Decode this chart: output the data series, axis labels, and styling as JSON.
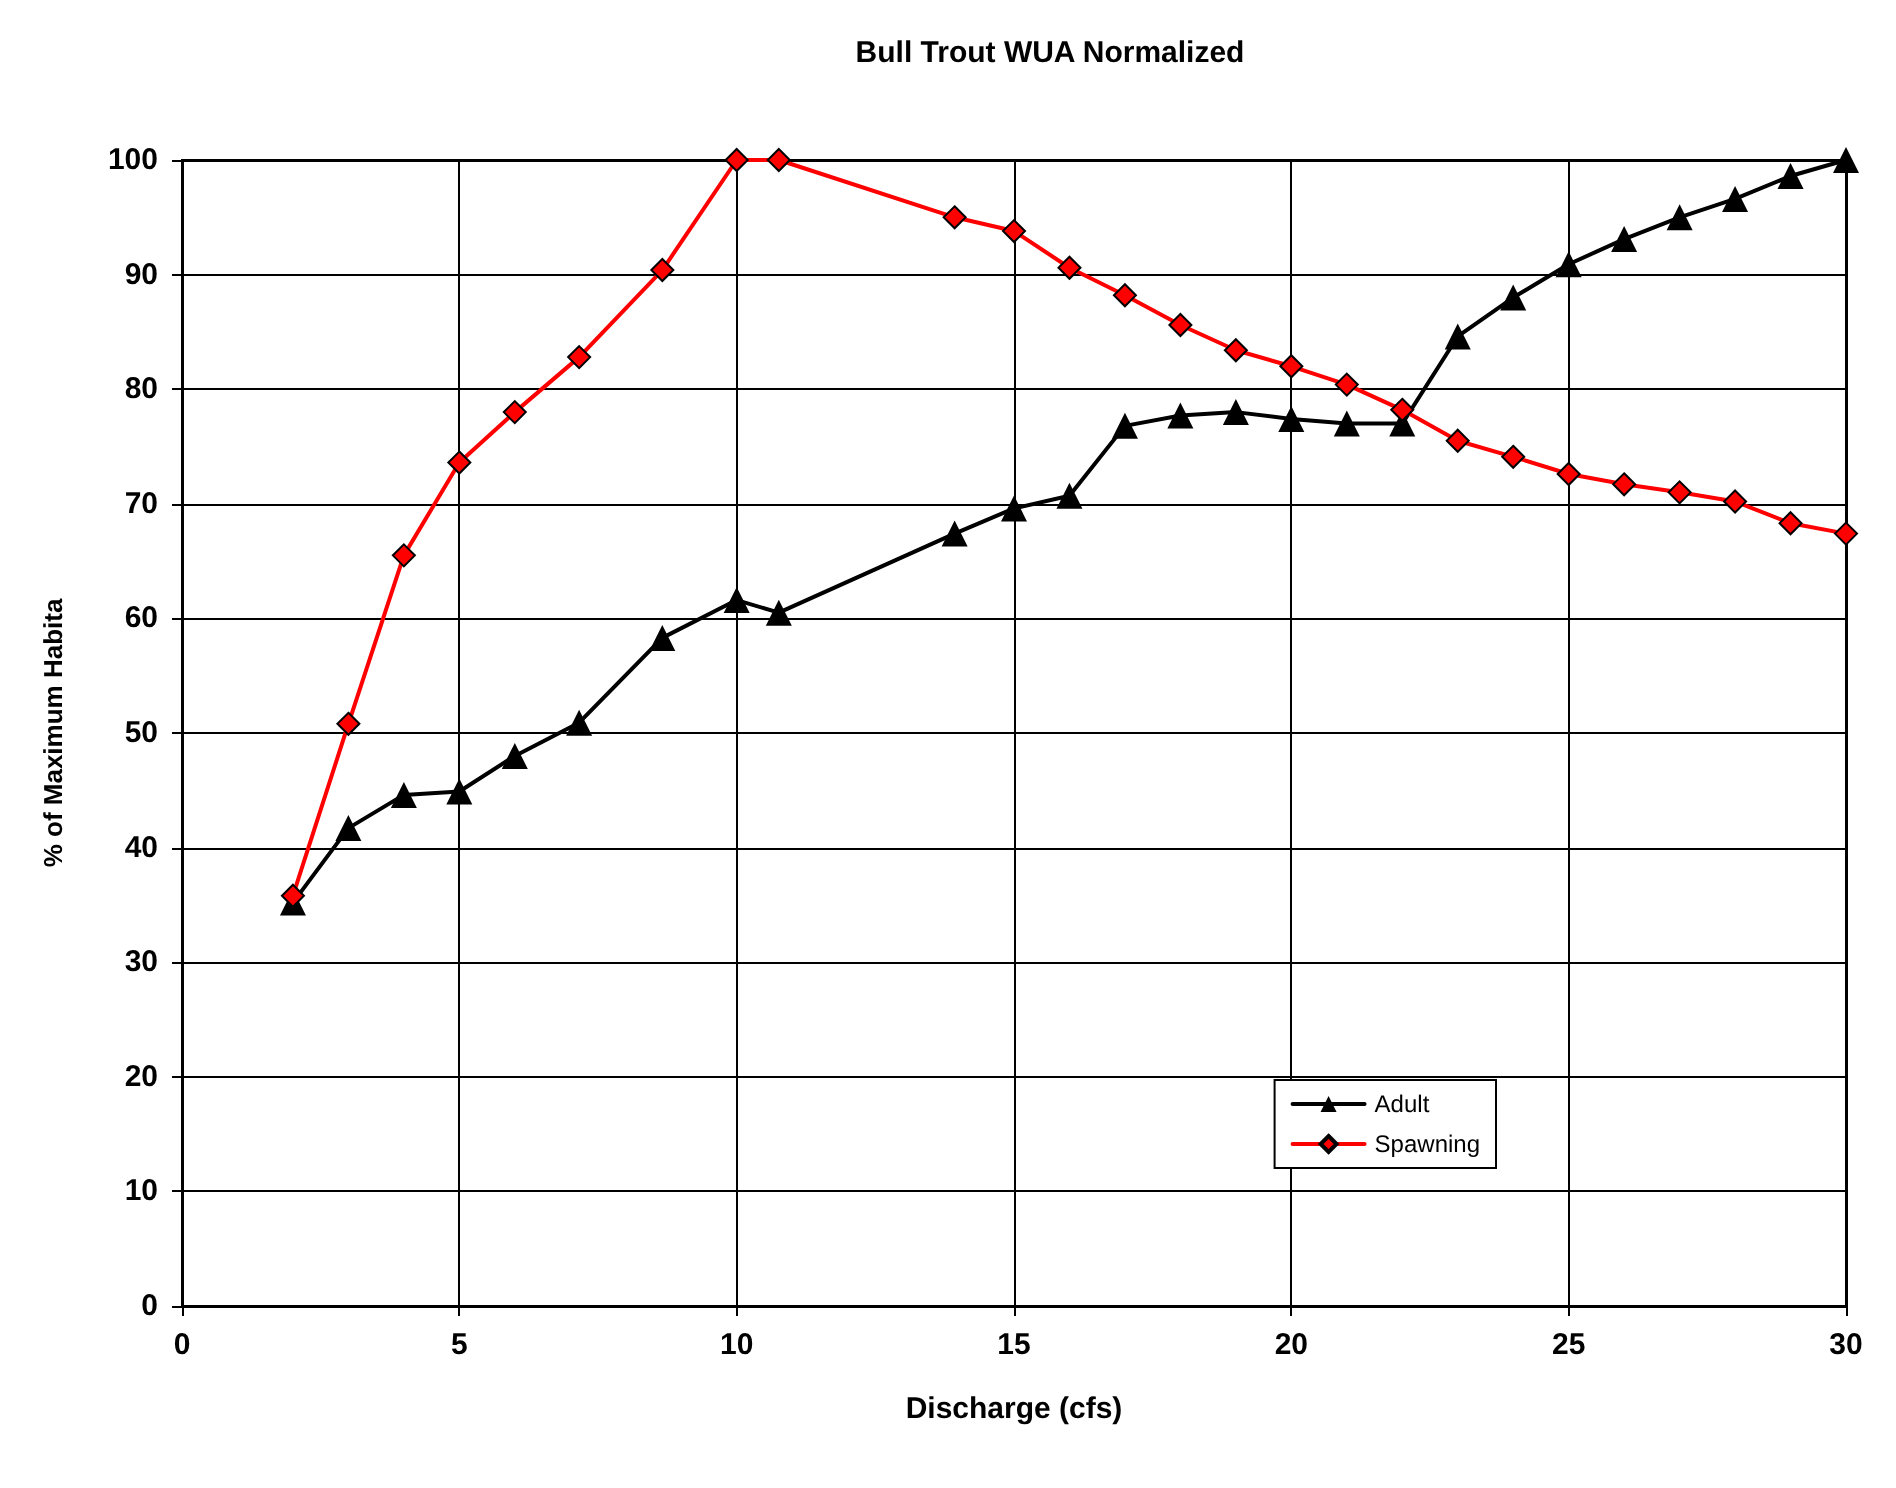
{
  "chart_data": {
    "type": "line",
    "title": "Bull Trout WUA Normalized",
    "xlabel": "Discharge (cfs)",
    "ylabel": "% of Maximum Habita",
    "xlim": [
      0,
      30
    ],
    "xticks": [
      0,
      5,
      10,
      15,
      20,
      25,
      30
    ],
    "ylim": [
      0,
      100
    ],
    "yticks": [
      0,
      10,
      20,
      30,
      40,
      50,
      60,
      70,
      80,
      90,
      100
    ],
    "grid": true,
    "legend": "bottom right",
    "line_style": "solid",
    "series": [
      {
        "name": "Adult",
        "color": "#000000",
        "marker": "triangle",
        "x": [
          2,
          3,
          4,
          5,
          6,
          7.16,
          8.66,
          10,
          10.76,
          13.93,
          15,
          16,
          17,
          18,
          19,
          20,
          21,
          22,
          23,
          24,
          25,
          26,
          27,
          28,
          29,
          30
        ],
        "values": [
          35.2,
          41.7,
          44.6,
          44.9,
          48.0,
          50.9,
          58.3,
          61.6,
          60.5,
          67.4,
          69.6,
          70.7,
          76.8,
          77.7,
          78.0,
          77.4,
          77.0,
          77.0,
          84.6,
          88.0,
          90.9,
          93.1,
          95.0,
          96.6,
          98.6,
          100
        ]
      },
      {
        "name": "Spawning",
        "color": "#ff0000",
        "marker": "diamond",
        "x": [
          2,
          3,
          4,
          5,
          6,
          7.16,
          8.66,
          10,
          10.76,
          13.93,
          15,
          16,
          17,
          18,
          19,
          20,
          21,
          22,
          23,
          24,
          25,
          26,
          27,
          28,
          29,
          30
        ],
        "values": [
          35.8,
          50.8,
          65.5,
          73.6,
          78.0,
          82.8,
          90.4,
          100,
          100,
          95.0,
          93.8,
          90.6,
          88.2,
          85.6,
          83.4,
          82.0,
          80.4,
          78.2,
          75.5,
          74.1,
          72.6,
          71.7,
          71.0,
          70.2,
          68.3,
          67.4
        ]
      }
    ]
  }
}
